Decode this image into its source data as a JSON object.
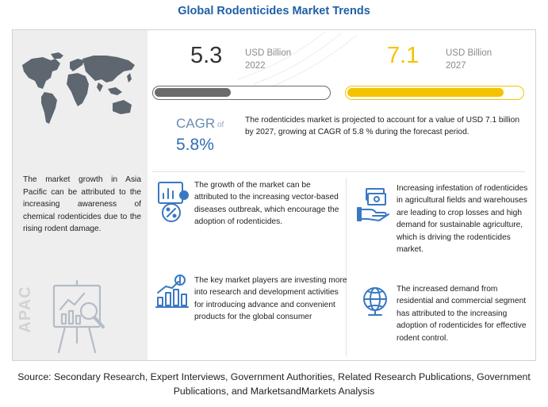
{
  "title": "Global Rodenticides Market Trends",
  "region": {
    "label": "APAC",
    "text": "The market growth in Asia Pacific can be attributed to the increasing awareness of chemical rodenticides due to the rising rodent damage."
  },
  "market_2022": {
    "value": "5.3",
    "unit": "USD Billion",
    "year": "2022",
    "bar_fill_fraction": 0.44
  },
  "market_2027": {
    "value": "7.1",
    "unit": "USD Billion",
    "year": "2027",
    "bar_fill_fraction": 0.9
  },
  "cagr": {
    "label": "CAGR",
    "of": "of",
    "value": "5.8%"
  },
  "projection_text": "The rodenticides market is projected to account for a value of USD 7.1 billion by 2027, growing at CAGR of 5.8 % during the forecast period.",
  "drivers": [
    {
      "icon": "disease-analysis-icon",
      "text": "The growth of the market can be attributed to the increasing vector-based diseases outbreak, which encourage the adoption of rodenticides."
    },
    {
      "icon": "money-hand-icon",
      "text": "Increasing infestation of rodenticides in agricultural fields and warehouses are leading to crop losses and high demand for sustainable agriculture, which is driving the rodenticides market."
    },
    {
      "icon": "growth-chart-icon",
      "text": "The key market players are investing more into research and development activities for introducing advance and convenient products for the global consumer"
    },
    {
      "icon": "globe-icon",
      "text": "The increased demand from residential and commercial segment has attributed to the increasing adoption of rodenticides for effective rodent control."
    }
  ],
  "source": "Source: Secondary Research, Expert Interviews, Government Authorities, Related Research Publications, Government Publications, and MarketsandMarkets Analysis",
  "colors": {
    "title": "#1f5fa8",
    "accent_2027": "#f4c300",
    "bar_2022": "#6b6b6b",
    "cagr": "#2e6db4",
    "icon_blue": "#3a78c2"
  }
}
